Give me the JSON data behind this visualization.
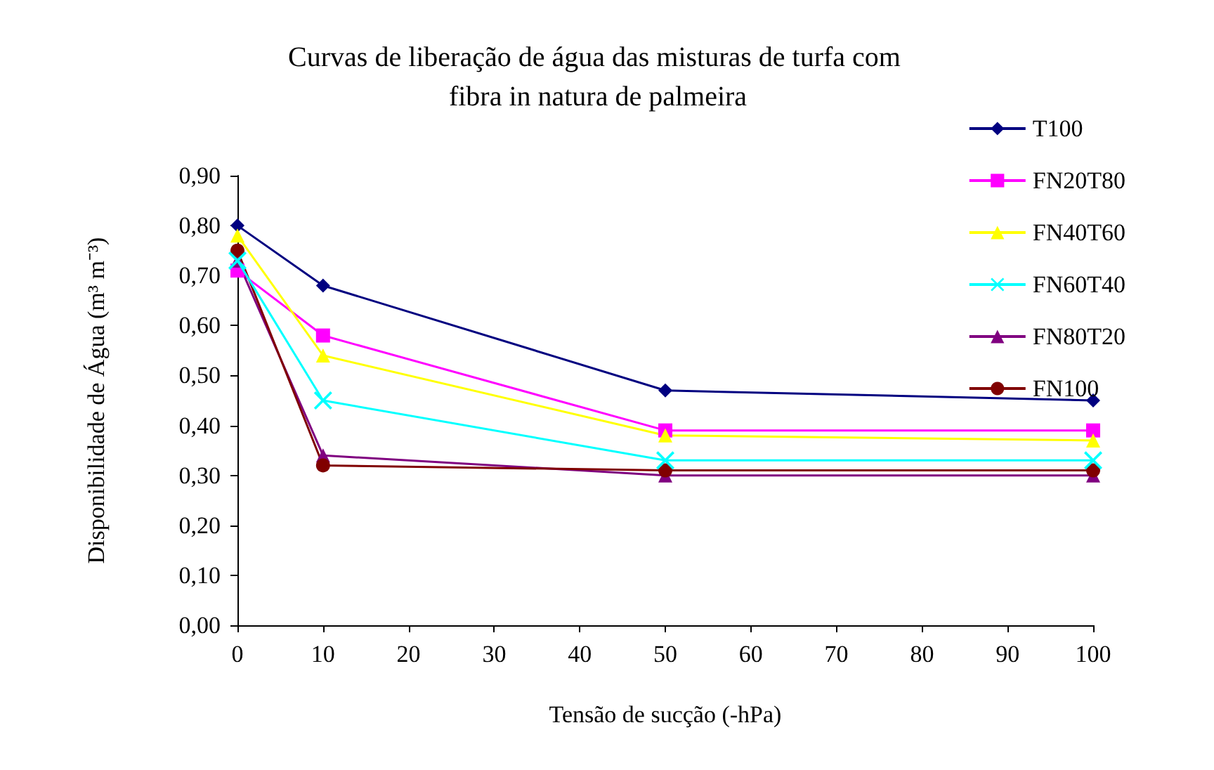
{
  "chart_data": {
    "type": "line",
    "title": "Curvas de liberação de água das misturas de turfa com fibra in natura de palmeira",
    "xlabel": "Tensão de sucção (-hPa)",
    "ylabel": "Disponibilidade de Água (m³ m⁻³)",
    "x": [
      0,
      10,
      50,
      100
    ],
    "series": [
      {
        "name": "T100",
        "color": "#000080",
        "marker": "diamond",
        "values": [
          0.8,
          0.68,
          0.47,
          0.45
        ]
      },
      {
        "name": "FN20T80",
        "color": "#ff00ff",
        "marker": "square",
        "values": [
          0.71,
          0.58,
          0.39,
          0.39
        ]
      },
      {
        "name": "FN40T60",
        "color": "#ffff00",
        "marker": "triangle",
        "values": [
          0.78,
          0.54,
          0.38,
          0.37
        ]
      },
      {
        "name": "FN60T40",
        "color": "#00ffff",
        "marker": "cross",
        "values": [
          0.73,
          0.45,
          0.33,
          0.33
        ]
      },
      {
        "name": "FN80T20",
        "color": "#800080",
        "marker": "triangle",
        "values": [
          0.73,
          0.34,
          0.3,
          0.3
        ]
      },
      {
        "name": "FN100",
        "color": "#800000",
        "marker": "circle",
        "values": [
          0.75,
          0.32,
          0.31,
          0.31
        ]
      }
    ],
    "xlim": [
      0,
      100
    ],
    "xticks": [
      0,
      10,
      20,
      30,
      40,
      50,
      60,
      70,
      80,
      90,
      100
    ],
    "ylim": [
      0,
      0.9
    ],
    "yticks": [
      {
        "value": 0,
        "label": "0,00"
      },
      {
        "value": 0.1,
        "label": "0,10"
      },
      {
        "value": 0.2,
        "label": "0,20"
      },
      {
        "value": 0.3,
        "label": "0,30"
      },
      {
        "value": 0.4,
        "label": "0,40"
      },
      {
        "value": 0.5,
        "label": "0,50"
      },
      {
        "value": 0.6,
        "label": "0,60"
      },
      {
        "value": 0.7,
        "label": "0,70"
      },
      {
        "value": 0.8,
        "label": "0,80"
      },
      {
        "value": 0.9,
        "label": "0,90"
      }
    ],
    "grid": false,
    "legend": "top right",
    "line_style": "solid"
  }
}
